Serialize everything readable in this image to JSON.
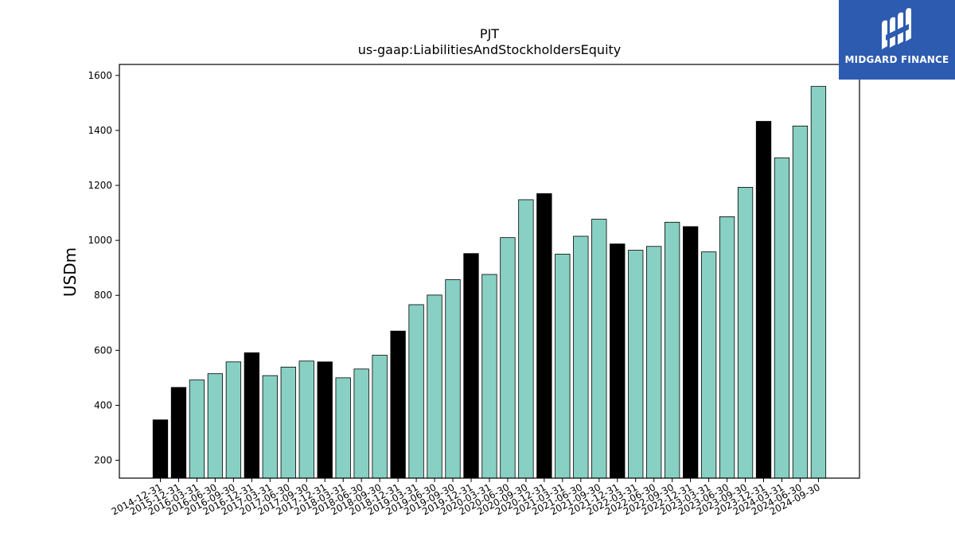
{
  "logo": {
    "text": "MIDGARD FINANCE",
    "icon": "midgard-logo-icon"
  },
  "colors": {
    "annual": "#000000",
    "quarterly": "#88d0c3",
    "edge": "#000000"
  },
  "chart_data": {
    "type": "bar",
    "title": "PJT",
    "subtitle": "us-gaap:LiabilitiesAndStockholdersEquity",
    "xlabel": "",
    "ylabel": "USDm",
    "ylim": [
      135,
      1640
    ],
    "yticks": [
      200,
      400,
      600,
      800,
      1000,
      1200,
      1400,
      1600
    ],
    "grid": false,
    "categories": [
      "2014-12-31",
      "2015-12-31",
      "2016-03-31",
      "2016-06-30",
      "2016-09-30",
      "2016-12-31",
      "2017-03-31",
      "2017-06-30",
      "2017-09-30",
      "2017-12-31",
      "2018-03-31",
      "2018-06-30",
      "2018-09-30",
      "2018-12-31",
      "2019-03-31",
      "2019-06-30",
      "2019-09-30",
      "2019-12-31",
      "2020-03-31",
      "2020-06-30",
      "2020-09-30",
      "2020-12-31",
      "2021-03-31",
      "2021-06-30",
      "2021-09-30",
      "2021-12-31",
      "2022-03-31",
      "2022-06-30",
      "2022-09-30",
      "2022-12-31",
      "2023-03-31",
      "2023-06-30",
      "2023-09-30",
      "2023-12-31",
      "2024-03-31",
      "2024-06-30",
      "2024-09-30"
    ],
    "values": [
      347,
      465,
      492,
      515,
      558,
      591,
      508,
      539,
      561,
      558,
      500,
      532,
      582,
      670,
      766,
      801,
      857,
      952,
      876,
      1010,
      1148,
      1170,
      950,
      1015,
      1077,
      987,
      964,
      978,
      1066,
      1050,
      958,
      1086,
      1193,
      1433,
      1300,
      1416,
      1560
    ],
    "annual": [
      true,
      true,
      false,
      false,
      false,
      true,
      false,
      false,
      false,
      true,
      false,
      false,
      false,
      true,
      false,
      false,
      false,
      true,
      false,
      false,
      false,
      true,
      false,
      false,
      false,
      true,
      false,
      false,
      false,
      true,
      false,
      false,
      false,
      true,
      false,
      false,
      false
    ]
  }
}
